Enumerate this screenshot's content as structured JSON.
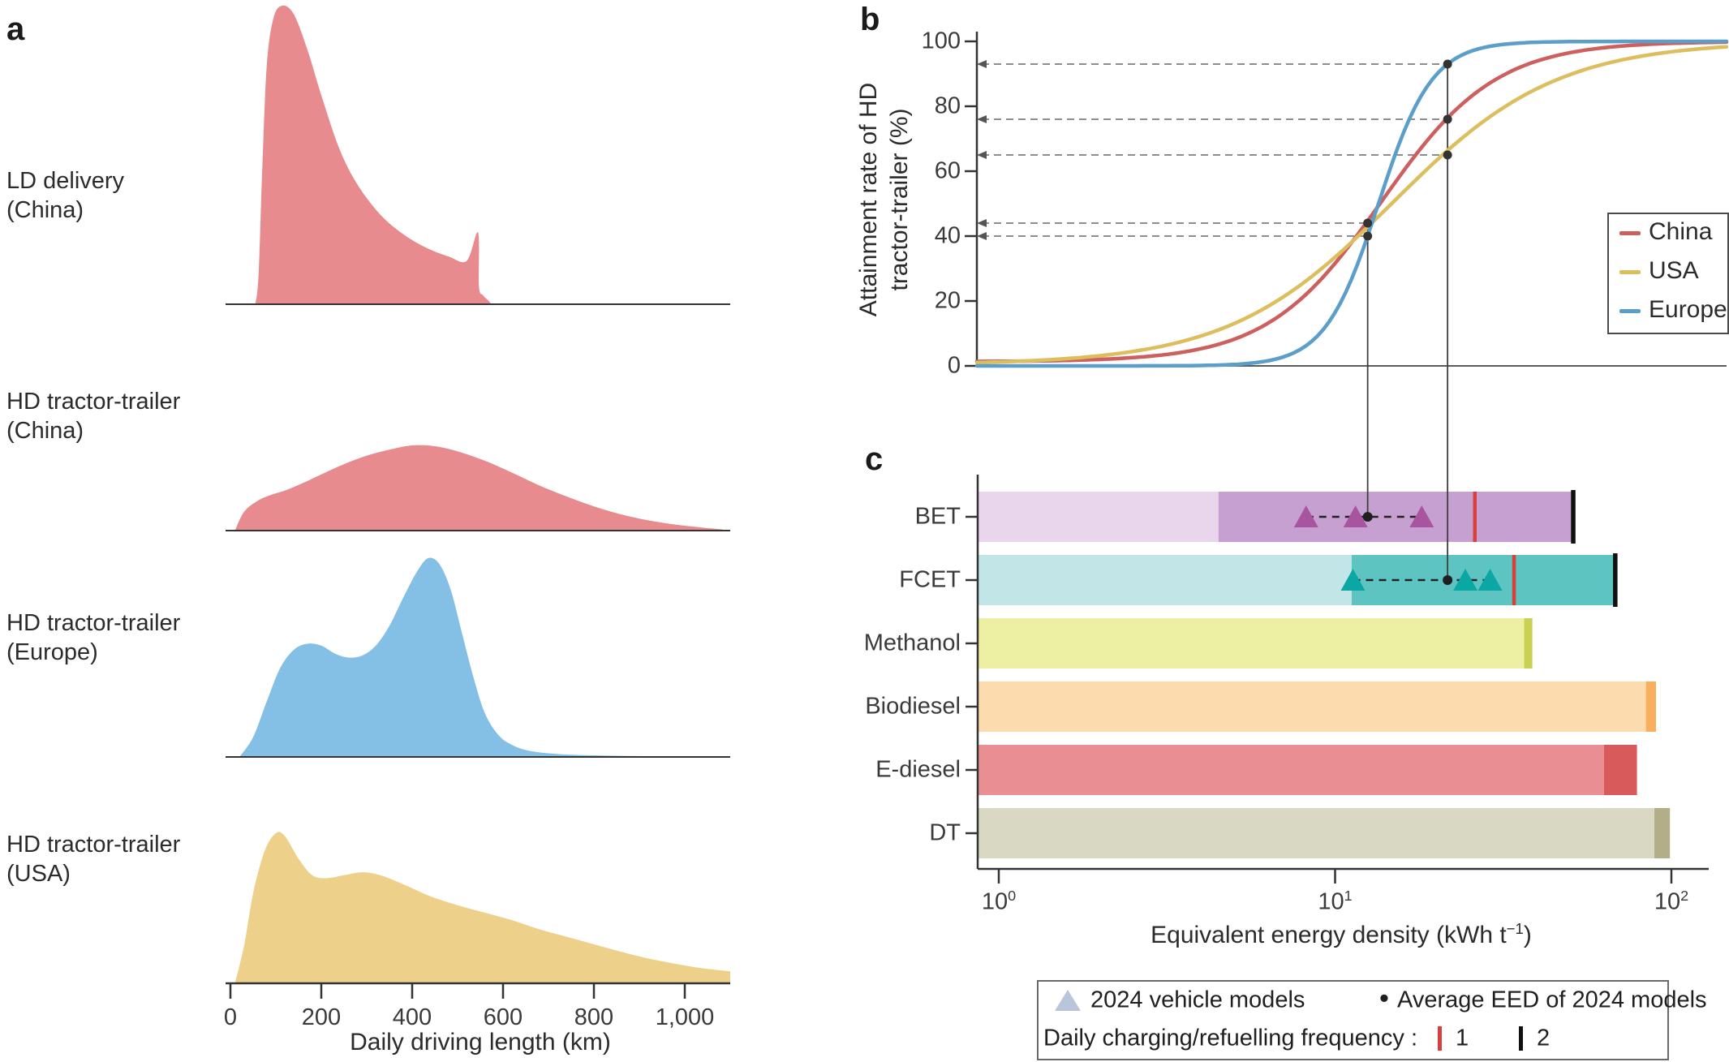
{
  "figure": {
    "background": "#ffffff"
  },
  "panel_letters": {
    "a": "a",
    "b": "b",
    "c": "c"
  },
  "colors": {
    "density_pink": "#e78b8e",
    "density_blue": "#84bfe6",
    "density_yellow": "#edd089",
    "china_line": "#cd5f5f",
    "usa_line": "#ddbe5e",
    "europe_line": "#5b9ec9",
    "guide_gray": "#7d7d7d",
    "connector_gray": "#3f3f3f",
    "dot_dark": "#333333",
    "red_tick": "#d6413c",
    "black_tick": "#111111",
    "triangle_legend": "#b9c5d9"
  },
  "chart_data": [
    {
      "id": "panel_a",
      "type": "area",
      "title": "",
      "xlabel": "Daily driving length (km)",
      "xlim": [
        0,
        1100
      ],
      "xticks": [
        {
          "km": 0,
          "label": "0"
        },
        {
          "km": 200,
          "label": "200"
        },
        {
          "km": 400,
          "label": "400"
        },
        {
          "km": 600,
          "label": "600"
        },
        {
          "km": 800,
          "label": "800"
        },
        {
          "km": 1000,
          "label": "1,000"
        }
      ],
      "series": [
        {
          "label_line1": "LD delivery",
          "label_line2": "(China)",
          "color": "#e78b8e",
          "peak_km": 115,
          "points": [
            [
              55,
              0
            ],
            [
              62,
              0.1
            ],
            [
              70,
              0.45
            ],
            [
              80,
              0.8
            ],
            [
              95,
              0.96
            ],
            [
              115,
              1.0
            ],
            [
              140,
              0.97
            ],
            [
              170,
              0.85
            ],
            [
              200,
              0.7
            ],
            [
              240,
              0.52
            ],
            [
              280,
              0.4
            ],
            [
              330,
              0.3
            ],
            [
              380,
              0.235
            ],
            [
              430,
              0.19
            ],
            [
              480,
              0.16
            ],
            [
              520,
              0.145
            ],
            [
              545,
              0.24
            ],
            [
              547,
              0.06
            ],
            [
              556,
              0.03
            ],
            [
              568,
              0.012
            ],
            [
              574,
              0
            ]
          ]
        },
        {
          "label_line1": "HD tractor-trailer",
          "label_line2": "(China)",
          "color": "#e78b8e",
          "peak_km": 400,
          "points": [
            [
              10,
              0
            ],
            [
              30,
              0.22
            ],
            [
              60,
              0.35
            ],
            [
              90,
              0.42
            ],
            [
              120,
              0.47
            ],
            [
              160,
              0.56
            ],
            [
              200,
              0.66
            ],
            [
              250,
              0.78
            ],
            [
              300,
              0.88
            ],
            [
              350,
              0.95
            ],
            [
              400,
              1.0
            ],
            [
              450,
              0.99
            ],
            [
              500,
              0.93
            ],
            [
              560,
              0.82
            ],
            [
              620,
              0.68
            ],
            [
              680,
              0.53
            ],
            [
              740,
              0.4
            ],
            [
              800,
              0.285
            ],
            [
              860,
              0.19
            ],
            [
              920,
              0.12
            ],
            [
              980,
              0.07
            ],
            [
              1040,
              0.035
            ],
            [
              1080,
              0.015
            ],
            [
              1095,
              0
            ]
          ]
        },
        {
          "label_line1": "HD tractor-trailer",
          "label_line2": "(Europe)",
          "color": "#84bfe6",
          "peak_km": 435,
          "points": [
            [
              20,
              0
            ],
            [
              50,
              0.1
            ],
            [
              80,
              0.28
            ],
            [
              110,
              0.45
            ],
            [
              140,
              0.54
            ],
            [
              170,
              0.57
            ],
            [
              200,
              0.56
            ],
            [
              230,
              0.52
            ],
            [
              260,
              0.5
            ],
            [
              290,
              0.51
            ],
            [
              320,
              0.56
            ],
            [
              350,
              0.66
            ],
            [
              380,
              0.8
            ],
            [
              410,
              0.93
            ],
            [
              435,
              1.0
            ],
            [
              460,
              0.97
            ],
            [
              485,
              0.84
            ],
            [
              510,
              0.62
            ],
            [
              535,
              0.4
            ],
            [
              560,
              0.22
            ],
            [
              590,
              0.11
            ],
            [
              620,
              0.06
            ],
            [
              660,
              0.03
            ],
            [
              720,
              0.015
            ],
            [
              800,
              0.008
            ],
            [
              900,
              0.004
            ],
            [
              1000,
              0
            ]
          ]
        },
        {
          "label_line1": "HD tractor-trailer",
          "label_line2": "(USA)",
          "color": "#edd089",
          "peak_km": 100,
          "points": [
            [
              10,
              0
            ],
            [
              30,
              0.25
            ],
            [
              50,
              0.6
            ],
            [
              75,
              0.88
            ],
            [
              100,
              1.0
            ],
            [
              120,
              0.98
            ],
            [
              150,
              0.83
            ],
            [
              180,
              0.72
            ],
            [
              210,
              0.7
            ],
            [
              250,
              0.72
            ],
            [
              290,
              0.74
            ],
            [
              330,
              0.72
            ],
            [
              380,
              0.66
            ],
            [
              440,
              0.58
            ],
            [
              500,
              0.52
            ],
            [
              560,
              0.47
            ],
            [
              620,
              0.42
            ],
            [
              680,
              0.36
            ],
            [
              740,
              0.31
            ],
            [
              800,
              0.26
            ],
            [
              860,
              0.21
            ],
            [
              920,
              0.165
            ],
            [
              980,
              0.13
            ],
            [
              1040,
              0.1
            ],
            [
              1100,
              0.08
            ]
          ]
        }
      ]
    },
    {
      "id": "panel_b",
      "type": "line",
      "ylabel_line1": "Attainment rate of HD",
      "ylabel_line2": "tractor-trailer (%)",
      "ylim": [
        0,
        100
      ],
      "yticks": [
        0,
        20,
        40,
        60,
        80,
        100
      ],
      "x_log_range": [
        0.87,
        146
      ],
      "legend": [
        {
          "name": "China",
          "color": "#cd5f5f"
        },
        {
          "name": "USA",
          "color": "#ddbe5e"
        },
        {
          "name": "Europe",
          "color": "#5b9ec9"
        }
      ],
      "curves": [
        {
          "name": "China",
          "color": "#cd5f5f",
          "logistic": {
            "k": 5.9,
            "m": 1.138,
            "floor": 0.013
          }
        },
        {
          "name": "USA",
          "color": "#ddbe5e",
          "logistic": {
            "k": 4.1,
            "m": 1.17,
            "floor": 0.004
          }
        },
        {
          "name": "Europe",
          "color": "#5b9ec9",
          "logistic": {
            "k": 12.6,
            "m": 1.129,
            "floor": 0.0
          }
        }
      ],
      "annotations": [
        {
          "x_value": 12.5,
          "marked": [
            {
              "series": "China",
              "pct": 44
            },
            {
              "series": "Europe",
              "pct": 40
            }
          ]
        },
        {
          "x_value": 21.6,
          "marked": [
            {
              "series": "Europe",
              "pct": 93
            },
            {
              "series": "China",
              "pct": 76
            },
            {
              "series": "USA",
              "pct": 65
            }
          ]
        }
      ]
    },
    {
      "id": "panel_c",
      "type": "bar",
      "xlabel_pre": "Equivalent energy density (kWh t",
      "xlabel_sup": "−1",
      "xlabel_post": ")",
      "x_log_ticks": [
        {
          "base": "10",
          "exp": "0",
          "value": 1
        },
        {
          "base": "10",
          "exp": "1",
          "value": 10
        },
        {
          "base": "10",
          "exp": "2",
          "value": 100
        }
      ],
      "axis_min_value": 0.87,
      "rows": [
        {
          "category": "BET",
          "light_color": "#e9d6ec",
          "dark_color": "#c6a0d1",
          "light_end": 4.5,
          "bar_end": 51,
          "charge_freq1": 26,
          "charge_freq2": 51,
          "models_2024": [
            8.2,
            11.5,
            18.1
          ],
          "avg_eed": 12.5,
          "triangle_color": "#a9549f"
        },
        {
          "category": "FCET",
          "light_color": "#c2e6e8",
          "dark_color": "#5ec4c2",
          "light_end": 11.2,
          "bar_end": 68,
          "charge_freq1": 34,
          "charge_freq2": 68,
          "models_2024": [
            11.3,
            24.4,
            28.9
          ],
          "avg_eed": 21.6,
          "triangle_color": "#0ba7a4"
        },
        {
          "category": "Methanol",
          "light_color": "#edf0a3",
          "dark_color": "#c9d052",
          "light_end": 36.5,
          "bar_end": 38.6
        },
        {
          "category": "Biodiesel",
          "light_color": "#fcdcae",
          "dark_color": "#f8b05e",
          "light_end": 84,
          "bar_end": 90
        },
        {
          "category": "E-diesel",
          "light_color": "#e98f94",
          "dark_color": "#d85a5a",
          "light_end": 63,
          "bar_end": 79
        },
        {
          "category": "DT",
          "light_color": "#d9d8c2",
          "dark_color": "#b2ae88",
          "light_end": 89,
          "bar_end": 99
        }
      ]
    }
  ],
  "panel_b_legend": {
    "items": [
      "China",
      "USA",
      "Europe"
    ]
  },
  "legend_bottom": {
    "triangle_label": "2024 vehicle models",
    "bullet": "•",
    "avg_label": "Average EED of 2024 models",
    "freq_label": "Daily charging/refuelling frequency :",
    "freq1": "1",
    "freq2": "2"
  }
}
